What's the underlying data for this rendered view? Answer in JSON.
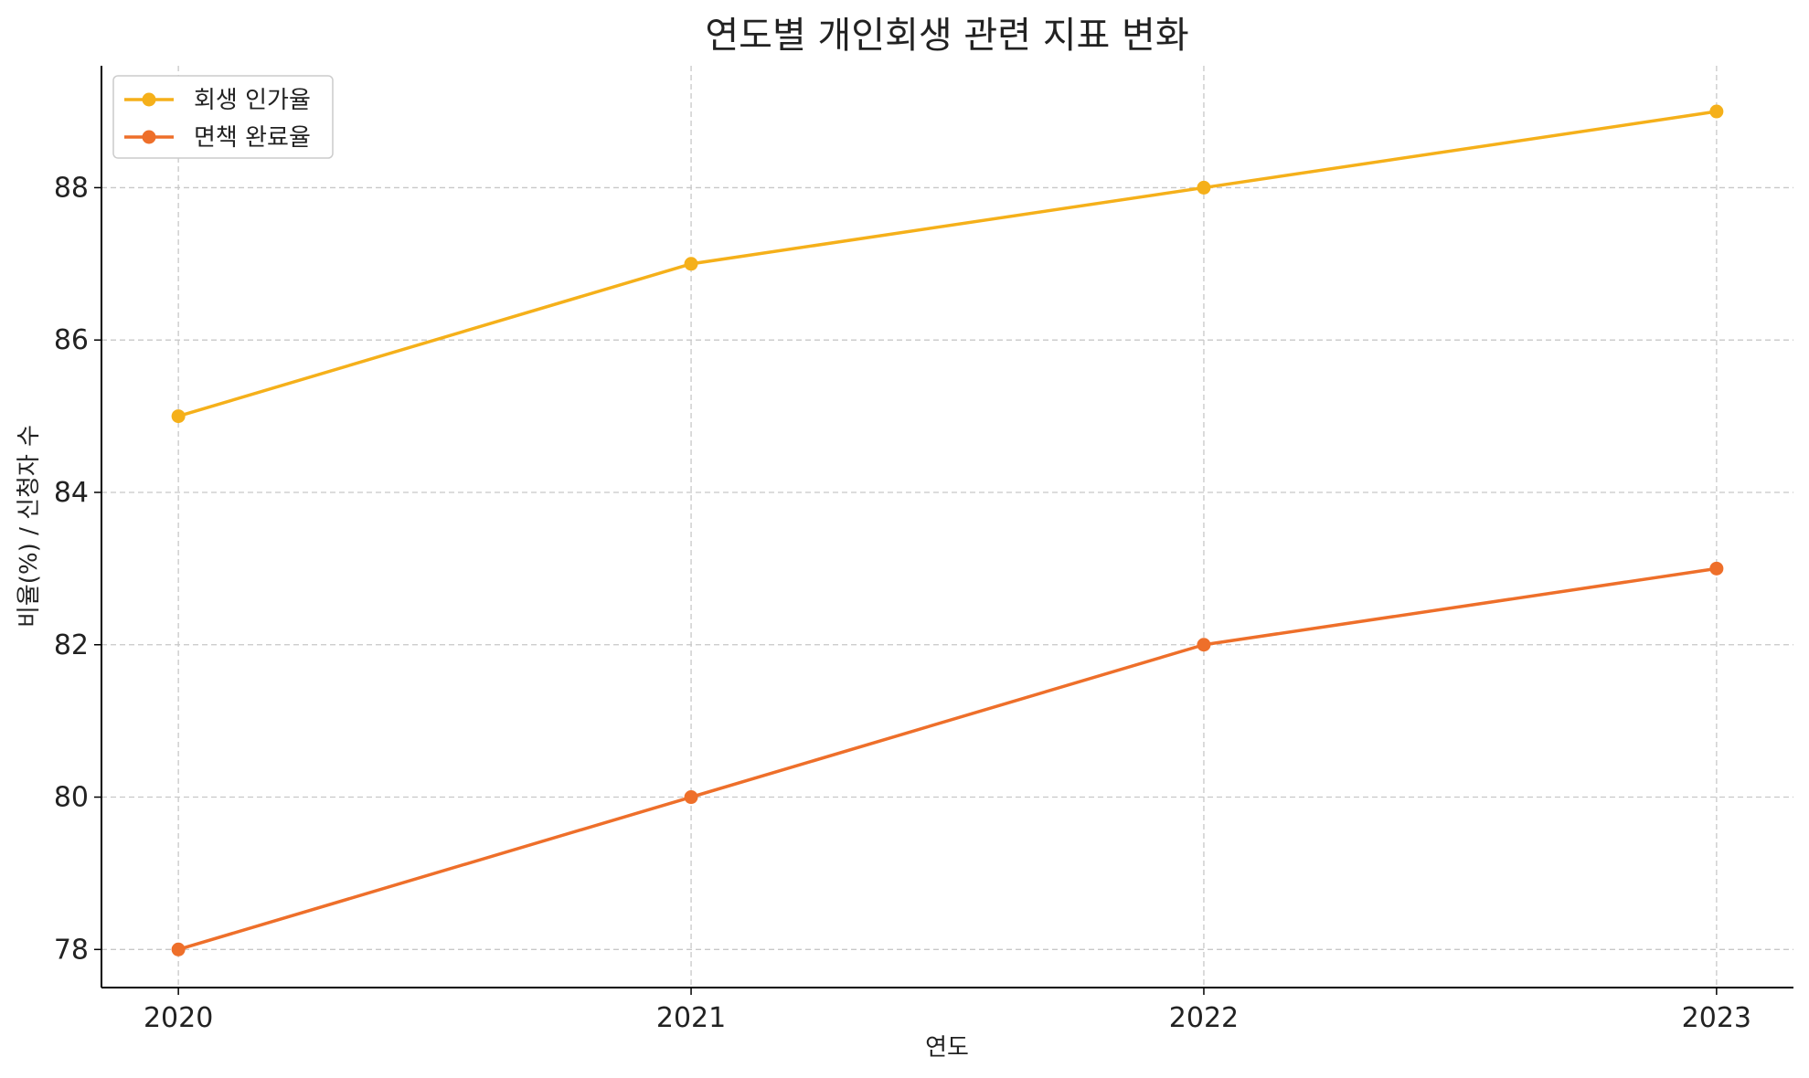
{
  "chart_data": {
    "type": "line",
    "title": "연도별 개인회생 관련 지표 변화",
    "xlabel": "연도",
    "ylabel": "비율(%) / 신청자 수",
    "categories": [
      "2020",
      "2021",
      "2022",
      "2023"
    ],
    "x": [
      2020,
      2021,
      2022,
      2023
    ],
    "series": [
      {
        "name": "회생 인가율",
        "values": [
          85,
          87,
          88,
          89
        ],
        "color": "#F5B01A"
      },
      {
        "name": "면책 완료율",
        "values": [
          78,
          80,
          82,
          83
        ],
        "color": "#EE6F2A"
      }
    ],
    "ylim": [
      77.5,
      89.6
    ],
    "xlim": [
      2019.85,
      2023.15
    ],
    "yticks": [
      "78",
      "80",
      "82",
      "84",
      "86",
      "88"
    ],
    "xticks": [
      "2020",
      "2021",
      "2022",
      "2023"
    ],
    "grid": true,
    "legend_position": "top-left"
  }
}
